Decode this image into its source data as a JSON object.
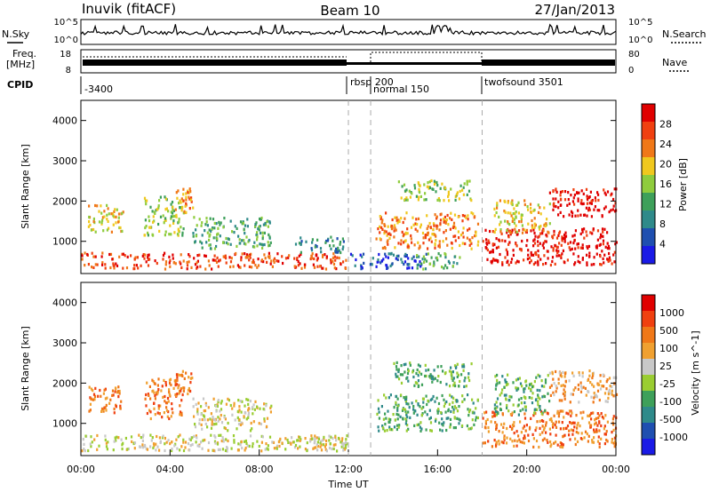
{
  "header": {
    "station": "Inuvik (fitACF)",
    "beam": "Beam 10",
    "date": "27/Jan/2013"
  },
  "noise_panel": {
    "left_label": "N.Sky",
    "right_label": "N.Search",
    "left_ticks": [
      "10^5",
      "10^0"
    ],
    "right_ticks": [
      "10^5",
      "10^0"
    ]
  },
  "freq_panel": {
    "left_label_line1": "Freq.",
    "left_label_line2": "[MHz]",
    "right_label": "Nave",
    "left_ticks": [
      "18",
      "8"
    ],
    "right_ticks": [
      "80",
      "0"
    ]
  },
  "cpid": {
    "label": "CPID",
    "segments": [
      {
        "text": "-3400",
        "start_hour": 0
      },
      {
        "text": "rbsp 200",
        "start_hour": 12
      },
      {
        "text": "normal 150",
        "start_hour": 13
      },
      {
        "text": "twofsound 3501",
        "start_hour": 18
      }
    ]
  },
  "colors": {
    "power": [
      "#1a1ae6",
      "#1f4fb0",
      "#2f8a8a",
      "#3ea05a",
      "#8fcc3d",
      "#f0c81e",
      "#f07818",
      "#f04010",
      "#e00000"
    ],
    "velocity": [
      "#e00000",
      "#f04010",
      "#f07818",
      "#f0a030",
      "#c8c8c8",
      "#9acd32",
      "#3ea05a",
      "#2f8a8a",
      "#1f4fb0",
      "#1a1ae6"
    ]
  },
  "chart_data": [
    {
      "type": "heatmap",
      "name": "power",
      "ylabel": "Slant Range [km]",
      "ylim": [
        200,
        4500
      ],
      "yticks": [
        1000,
        2000,
        3000,
        4000
      ],
      "xlim": [
        0,
        24
      ],
      "colorbar_label": "Power [dB]",
      "colorbar_ticks": [
        "28",
        "24",
        "20",
        "16",
        "12",
        "8",
        "4"
      ],
      "colorbar_range": [
        0,
        32
      ],
      "regions": [
        {
          "t0": 0.0,
          "t1": 11.9,
          "r0": 300,
          "r1": 700,
          "level": 7
        },
        {
          "t0": 0.3,
          "t1": 1.9,
          "r0": 1200,
          "r1": 1900,
          "level": 5
        },
        {
          "t0": 2.8,
          "t1": 4.6,
          "r0": 1100,
          "r1": 2100,
          "level": 4
        },
        {
          "t0": 4.2,
          "t1": 5.0,
          "r0": 1700,
          "r1": 2300,
          "level": 6
        },
        {
          "t0": 5.0,
          "t1": 8.5,
          "r0": 800,
          "r1": 1600,
          "level": 3
        },
        {
          "t0": 9.6,
          "t1": 11.8,
          "r0": 700,
          "r1": 1100,
          "level": 2
        },
        {
          "t0": 12.0,
          "t1": 15.5,
          "r0": 300,
          "r1": 700,
          "level": 1
        },
        {
          "t0": 13.2,
          "t1": 17.8,
          "r0": 800,
          "r1": 1700,
          "level": 6
        },
        {
          "t0": 14.2,
          "t1": 17.5,
          "r0": 2000,
          "r1": 2500,
          "level": 4
        },
        {
          "t0": 15.0,
          "t1": 17.0,
          "r0": 300,
          "r1": 700,
          "level": 3
        },
        {
          "t0": 18.0,
          "t1": 24.0,
          "r0": 400,
          "r1": 1300,
          "level": 8
        },
        {
          "t0": 18.5,
          "t1": 21.0,
          "r0": 1200,
          "r1": 2000,
          "level": 5
        },
        {
          "t0": 21.0,
          "t1": 24.0,
          "r0": 1600,
          "r1": 2300,
          "level": 8
        }
      ]
    },
    {
      "type": "heatmap",
      "name": "velocity",
      "ylabel": "Slant Range [km]",
      "ylim": [
        200,
        4500
      ],
      "yticks": [
        1000,
        2000,
        3000,
        4000
      ],
      "xlim": [
        0,
        24
      ],
      "xticks": [
        "00:00",
        "04:00",
        "08:00",
        "12:00",
        "16:00",
        "20:00",
        "00:00"
      ],
      "xlabel": "Time UT",
      "colorbar_label": "Velocity [m s^-1]",
      "colorbar_ticks": [
        "1000",
        "500",
        "100",
        "25",
        "-25",
        "-100",
        "-500",
        "-1000"
      ],
      "regions": [
        {
          "t0": 0.0,
          "t1": 11.9,
          "r0": 300,
          "r1": 700,
          "level": 4
        },
        {
          "t0": 0.3,
          "t1": 1.8,
          "r0": 1200,
          "r1": 1900,
          "level": 2
        },
        {
          "t0": 2.8,
          "t1": 4.5,
          "r0": 1100,
          "r1": 2100,
          "level": 2
        },
        {
          "t0": 4.2,
          "t1": 5.0,
          "r0": 1700,
          "r1": 2300,
          "level": 2
        },
        {
          "t0": 5.0,
          "t1": 8.5,
          "r0": 800,
          "r1": 1600,
          "level": 4
        },
        {
          "t0": 9.6,
          "t1": 11.8,
          "r0": 300,
          "r1": 700,
          "level": 4
        },
        {
          "t0": 13.2,
          "t1": 17.8,
          "r0": 800,
          "r1": 1700,
          "level": 6
        },
        {
          "t0": 14.0,
          "t1": 17.5,
          "r0": 1900,
          "r1": 2500,
          "level": 6
        },
        {
          "t0": 18.0,
          "t1": 24.0,
          "r0": 400,
          "r1": 1300,
          "level": 2
        },
        {
          "t0": 18.5,
          "t1": 21.0,
          "r0": 1200,
          "r1": 2200,
          "level": 6
        },
        {
          "t0": 21.0,
          "t1": 24.0,
          "r0": 1500,
          "r1": 2300,
          "level": 3
        }
      ]
    }
  ]
}
